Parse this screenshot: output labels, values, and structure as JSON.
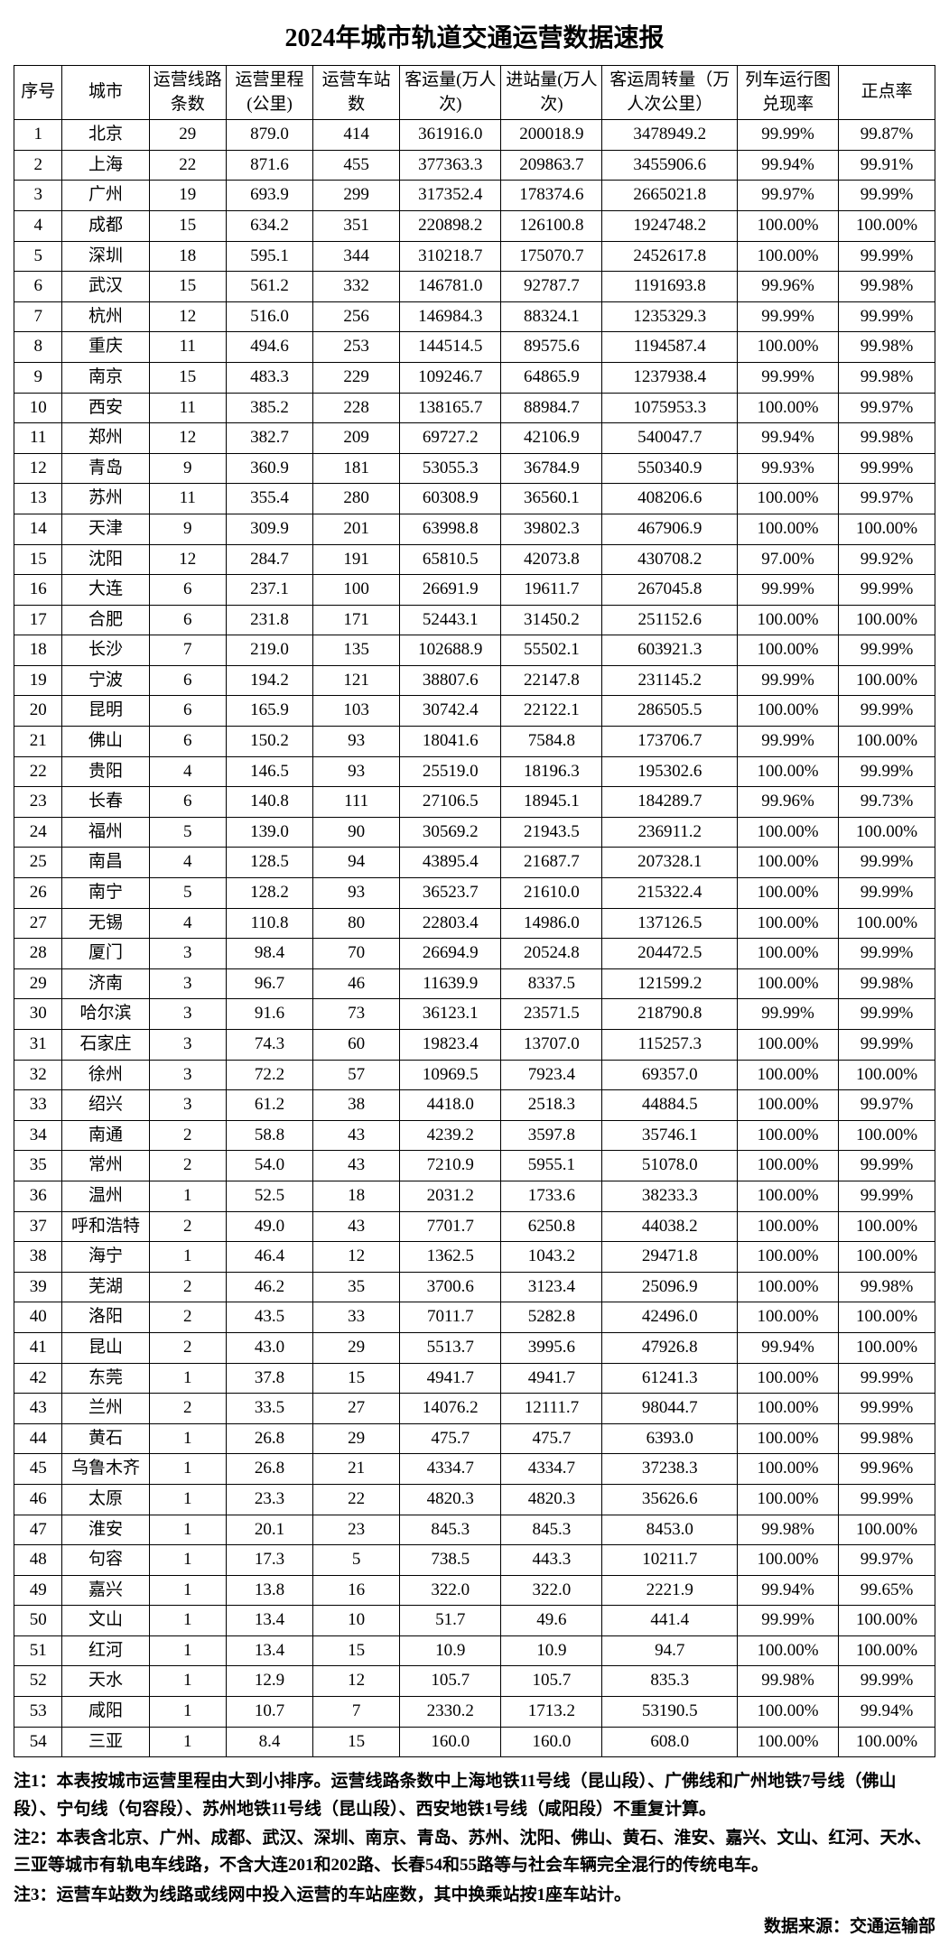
{
  "title": "2024年城市轨道交通运营数据速报",
  "columns": [
    "序号",
    "城市",
    "运营线路条数",
    "运营里程(公里)",
    "运营车站数",
    "客运量(万人次)",
    "进站量(万人次)",
    "客运周转量（万人次公里）",
    "列车运行图兑现率",
    "正点率"
  ],
  "rows": [
    [
      "1",
      "北京",
      "29",
      "879.0",
      "414",
      "361916.0",
      "200018.9",
      "3478949.2",
      "99.99%",
      "99.87%"
    ],
    [
      "2",
      "上海",
      "22",
      "871.6",
      "455",
      "377363.3",
      "209863.7",
      "3455906.6",
      "99.94%",
      "99.91%"
    ],
    [
      "3",
      "广州",
      "19",
      "693.9",
      "299",
      "317352.4",
      "178374.6",
      "2665021.8",
      "99.97%",
      "99.99%"
    ],
    [
      "4",
      "成都",
      "15",
      "634.2",
      "351",
      "220898.2",
      "126100.8",
      "1924748.2",
      "100.00%",
      "100.00%"
    ],
    [
      "5",
      "深圳",
      "18",
      "595.1",
      "344",
      "310218.7",
      "175070.7",
      "2452617.8",
      "100.00%",
      "99.99%"
    ],
    [
      "6",
      "武汉",
      "15",
      "561.2",
      "332",
      "146781.0",
      "92787.7",
      "1191693.8",
      "99.96%",
      "99.98%"
    ],
    [
      "7",
      "杭州",
      "12",
      "516.0",
      "256",
      "146984.3",
      "88324.1",
      "1235329.3",
      "99.99%",
      "99.99%"
    ],
    [
      "8",
      "重庆",
      "11",
      "494.6",
      "253",
      "144514.5",
      "89575.6",
      "1194587.4",
      "100.00%",
      "99.98%"
    ],
    [
      "9",
      "南京",
      "15",
      "483.3",
      "229",
      "109246.7",
      "64865.9",
      "1237938.4",
      "99.99%",
      "99.98%"
    ],
    [
      "10",
      "西安",
      "11",
      "385.2",
      "228",
      "138165.7",
      "88984.7",
      "1075953.3",
      "100.00%",
      "99.97%"
    ],
    [
      "11",
      "郑州",
      "12",
      "382.7",
      "209",
      "69727.2",
      "42106.9",
      "540047.7",
      "99.94%",
      "99.98%"
    ],
    [
      "12",
      "青岛",
      "9",
      "360.9",
      "181",
      "53055.3",
      "36784.9",
      "550340.9",
      "99.93%",
      "99.99%"
    ],
    [
      "13",
      "苏州",
      "11",
      "355.4",
      "280",
      "60308.9",
      "36560.1",
      "408206.6",
      "100.00%",
      "99.97%"
    ],
    [
      "14",
      "天津",
      "9",
      "309.9",
      "201",
      "63998.8",
      "39802.3",
      "467906.9",
      "100.00%",
      "100.00%"
    ],
    [
      "15",
      "沈阳",
      "12",
      "284.7",
      "191",
      "65810.5",
      "42073.8",
      "430708.2",
      "97.00%",
      "99.92%"
    ],
    [
      "16",
      "大连",
      "6",
      "237.1",
      "100",
      "26691.9",
      "19611.7",
      "267045.8",
      "99.99%",
      "99.99%"
    ],
    [
      "17",
      "合肥",
      "6",
      "231.8",
      "171",
      "52443.1",
      "31450.2",
      "251152.6",
      "100.00%",
      "100.00%"
    ],
    [
      "18",
      "长沙",
      "7",
      "219.0",
      "135",
      "102688.9",
      "55502.1",
      "603921.3",
      "100.00%",
      "99.99%"
    ],
    [
      "19",
      "宁波",
      "6",
      "194.2",
      "121",
      "38807.6",
      "22147.8",
      "231145.2",
      "99.99%",
      "100.00%"
    ],
    [
      "20",
      "昆明",
      "6",
      "165.9",
      "103",
      "30742.4",
      "22122.1",
      "286505.5",
      "100.00%",
      "99.99%"
    ],
    [
      "21",
      "佛山",
      "6",
      "150.2",
      "93",
      "18041.6",
      "7584.8",
      "173706.7",
      "99.99%",
      "100.00%"
    ],
    [
      "22",
      "贵阳",
      "4",
      "146.5",
      "93",
      "25519.0",
      "18196.3",
      "195302.6",
      "100.00%",
      "99.99%"
    ],
    [
      "23",
      "长春",
      "6",
      "140.8",
      "111",
      "27106.5",
      "18945.1",
      "184289.7",
      "99.96%",
      "99.73%"
    ],
    [
      "24",
      "福州",
      "5",
      "139.0",
      "90",
      "30569.2",
      "21943.5",
      "236911.2",
      "100.00%",
      "100.00%"
    ],
    [
      "25",
      "南昌",
      "4",
      "128.5",
      "94",
      "43895.4",
      "21687.7",
      "207328.1",
      "100.00%",
      "99.99%"
    ],
    [
      "26",
      "南宁",
      "5",
      "128.2",
      "93",
      "36523.7",
      "21610.0",
      "215322.4",
      "100.00%",
      "99.99%"
    ],
    [
      "27",
      "无锡",
      "4",
      "110.8",
      "80",
      "22803.4",
      "14986.0",
      "137126.5",
      "100.00%",
      "100.00%"
    ],
    [
      "28",
      "厦门",
      "3",
      "98.4",
      "70",
      "26694.9",
      "20524.8",
      "204472.5",
      "100.00%",
      "99.99%"
    ],
    [
      "29",
      "济南",
      "3",
      "96.7",
      "46",
      "11639.9",
      "8337.5",
      "121599.2",
      "100.00%",
      "99.98%"
    ],
    [
      "30",
      "哈尔滨",
      "3",
      "91.6",
      "73",
      "36123.1",
      "23571.5",
      "218790.8",
      "99.99%",
      "99.99%"
    ],
    [
      "31",
      "石家庄",
      "3",
      "74.3",
      "60",
      "19823.4",
      "13707.0",
      "115257.3",
      "100.00%",
      "99.99%"
    ],
    [
      "32",
      "徐州",
      "3",
      "72.2",
      "57",
      "10969.5",
      "7923.4",
      "69357.0",
      "100.00%",
      "100.00%"
    ],
    [
      "33",
      "绍兴",
      "3",
      "61.2",
      "38",
      "4418.0",
      "2518.3",
      "44884.5",
      "100.00%",
      "99.97%"
    ],
    [
      "34",
      "南通",
      "2",
      "58.8",
      "43",
      "4239.2",
      "3597.8",
      "35746.1",
      "100.00%",
      "100.00%"
    ],
    [
      "35",
      "常州",
      "2",
      "54.0",
      "43",
      "7210.9",
      "5955.1",
      "51078.0",
      "100.00%",
      "99.99%"
    ],
    [
      "36",
      "温州",
      "1",
      "52.5",
      "18",
      "2031.2",
      "1733.6",
      "38233.3",
      "100.00%",
      "99.99%"
    ],
    [
      "37",
      "呼和浩特",
      "2",
      "49.0",
      "43",
      "7701.7",
      "6250.8",
      "44038.2",
      "100.00%",
      "100.00%"
    ],
    [
      "38",
      "海宁",
      "1",
      "46.4",
      "12",
      "1362.5",
      "1043.2",
      "29471.8",
      "100.00%",
      "100.00%"
    ],
    [
      "39",
      "芜湖",
      "2",
      "46.2",
      "35",
      "3700.6",
      "3123.4",
      "25096.9",
      "100.00%",
      "99.98%"
    ],
    [
      "40",
      "洛阳",
      "2",
      "43.5",
      "33",
      "7011.7",
      "5282.8",
      "42496.0",
      "100.00%",
      "100.00%"
    ],
    [
      "41",
      "昆山",
      "2",
      "43.0",
      "29",
      "5513.7",
      "3995.6",
      "47926.8",
      "99.94%",
      "100.00%"
    ],
    [
      "42",
      "东莞",
      "1",
      "37.8",
      "15",
      "4941.7",
      "4941.7",
      "61241.3",
      "100.00%",
      "99.99%"
    ],
    [
      "43",
      "兰州",
      "2",
      "33.5",
      "27",
      "14076.2",
      "12111.7",
      "98044.7",
      "100.00%",
      "99.99%"
    ],
    [
      "44",
      "黄石",
      "1",
      "26.8",
      "29",
      "475.7",
      "475.7",
      "6393.0",
      "100.00%",
      "99.98%"
    ],
    [
      "45",
      "乌鲁木齐",
      "1",
      "26.8",
      "21",
      "4334.7",
      "4334.7",
      "37238.3",
      "100.00%",
      "99.96%"
    ],
    [
      "46",
      "太原",
      "1",
      "23.3",
      "22",
      "4820.3",
      "4820.3",
      "35626.6",
      "100.00%",
      "99.99%"
    ],
    [
      "47",
      "淮安",
      "1",
      "20.1",
      "23",
      "845.3",
      "845.3",
      "8453.0",
      "99.98%",
      "100.00%"
    ],
    [
      "48",
      "句容",
      "1",
      "17.3",
      "5",
      "738.5",
      "443.3",
      "10211.7",
      "100.00%",
      "99.97%"
    ],
    [
      "49",
      "嘉兴",
      "1",
      "13.8",
      "16",
      "322.0",
      "322.0",
      "2221.9",
      "99.94%",
      "99.65%"
    ],
    [
      "50",
      "文山",
      "1",
      "13.4",
      "10",
      "51.7",
      "49.6",
      "441.4",
      "99.99%",
      "100.00%"
    ],
    [
      "51",
      "红河",
      "1",
      "13.4",
      "15",
      "10.9",
      "10.9",
      "94.7",
      "100.00%",
      "100.00%"
    ],
    [
      "52",
      "天水",
      "1",
      "12.9",
      "12",
      "105.7",
      "105.7",
      "835.3",
      "99.98%",
      "99.99%"
    ],
    [
      "53",
      "咸阳",
      "1",
      "10.7",
      "7",
      "2330.2",
      "1713.2",
      "53190.5",
      "100.00%",
      "99.94%"
    ],
    [
      "54",
      "三亚",
      "1",
      "8.4",
      "15",
      "160.0",
      "160.0",
      "608.0",
      "100.00%",
      "100.00%"
    ]
  ],
  "notes": {
    "n1": "注1：本表按城市运营里程由大到小排序。运营线路条数中上海地铁11号线（昆山段）、广佛线和广州地铁7号线（佛山段）、宁句线（句容段）、苏州地铁11号线（昆山段）、西安地铁1号线（咸阳段）不重复计算。",
    "n2": "注2：本表含北京、广州、成都、武汉、深圳、南京、青岛、苏州、沈阳、佛山、黄石、淮安、嘉兴、文山、红河、天水、三亚等城市有轨电车线路，不含大连201和202路、长春54和55路等与社会车辆完全混行的传统电车。",
    "n3": "注3：运营车站数为线路或线网中投入运营的车站座数，其中换乘站按1座车站计。"
  },
  "source": "数据来源：交通运输部"
}
